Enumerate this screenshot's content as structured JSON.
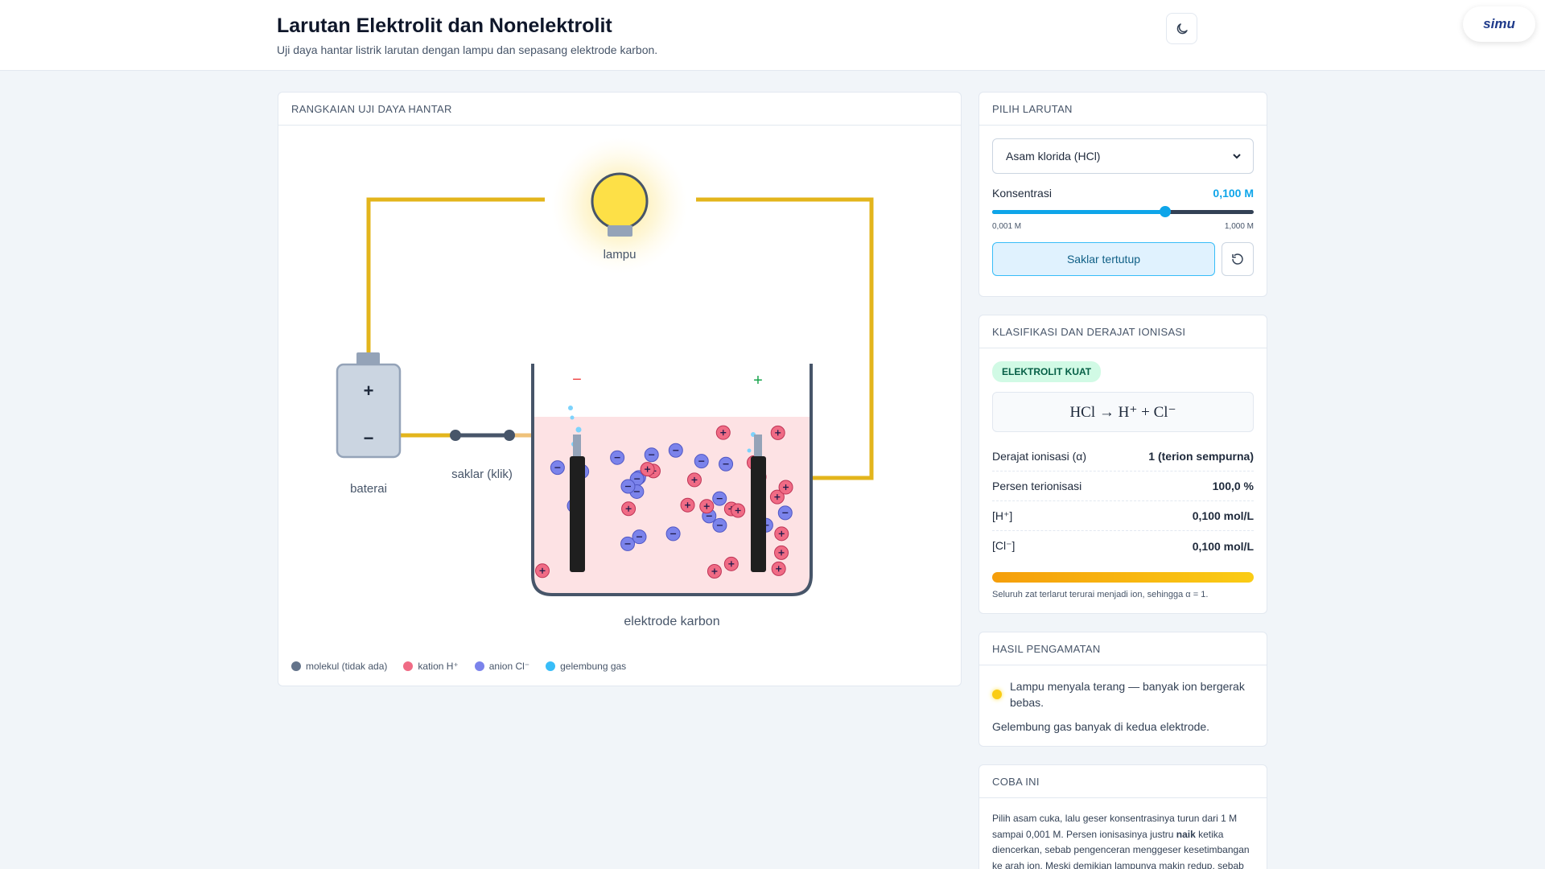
{
  "header": {
    "title": "Larutan Elektrolit dan Nonelektrolit",
    "subtitle": "Uji daya hantar listrik larutan dengan lampu dan sepasang elektrode karbon.",
    "logo": "simu"
  },
  "circuit": {
    "title": "RANGKAIAN UJI DAYA HANTAR",
    "lamp_label": "lampu",
    "battery_plus": "+",
    "battery_minus": "−",
    "battery_label": "baterai",
    "switch_label": "saklar (klik)",
    "electrode_minus": "−",
    "electrode_plus": "+",
    "electrode_label": "elektrode karbon",
    "legend": [
      "molekul (tidak ada)",
      "kation H⁺",
      "anion Cl⁻",
      "gelembung gas"
    ]
  },
  "solution_panel": {
    "title": "PILIH LARUTAN",
    "selected": "Asam klorida (HCl)",
    "concentration_label": "Konsentrasi",
    "concentration_value": "0,100 M",
    "min_label": "0,001 M",
    "max_label": "1,000 M",
    "switch_button": "Saklar tertutup"
  },
  "classification": {
    "title": "KLASIFIKASI DAN DERAJAT IONISASI",
    "badge": "ELEKTROLIT KUAT",
    "equation": "HCl → H⁺ + Cl⁻",
    "rows": [
      [
        "Derajat ionisasi (α)",
        "1 (terion sempurna)"
      ],
      [
        "Persen terionisasi",
        "100,0 %"
      ],
      [
        "[H⁺]",
        "0,100 mol/L"
      ],
      [
        "[Cl⁻]",
        "0,100 mol/L"
      ]
    ],
    "note": "Seluruh zat terlarut terurai menjadi ion, sehingga α = 1."
  },
  "observation": {
    "title": "HASIL PENGAMATAN",
    "items": [
      "Lampu menyala terang — banyak ion bergerak bebas.",
      "Gelembung gas banyak di kedua elektrode."
    ]
  },
  "try_this": {
    "title": "COBA INI",
    "text_before": "Pilih asam cuka, lalu geser konsentrasinya turun dari 1 M sampai 0,001 M. Persen ionisasinya justru ",
    "bold": "naik",
    "text_after": " ketika diencerkan, sebab pengenceran menggeser kesetimbangan ke arah ion. Meski demikian lampunya makin redup, sebab"
  }
}
